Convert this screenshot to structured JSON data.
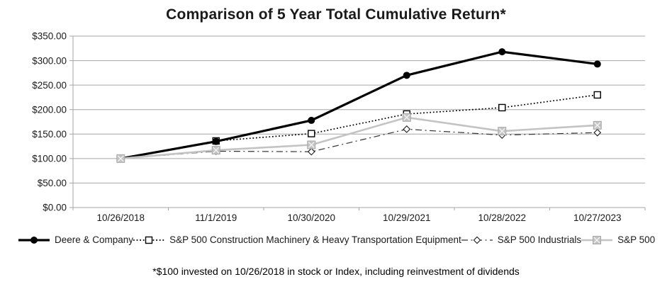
{
  "chart": {
    "title": "Comparison of 5 Year Total Cumulative Return*",
    "footnote": "*$100 invested on 10/26/2018 in stock or Index, including reinvestment of dividends"
  },
  "chart_data": {
    "type": "line",
    "title": "Comparison of 5 Year Total Cumulative Return*",
    "categories": [
      "10/26/2018",
      "11/1/2019",
      "10/30/2020",
      "10/29/2021",
      "10/28/2022",
      "10/27/2023"
    ],
    "series": [
      {
        "name": "Deere & Company",
        "values": [
          100,
          135,
          178,
          270,
          318,
          293
        ],
        "color": "#000000",
        "line_style": "solid",
        "line_width": 3.2,
        "marker": "filled-circle"
      },
      {
        "name": "S&P 500 Construction Machinery & Heavy Transportation Equipment",
        "values": [
          100,
          136,
          151,
          191,
          204,
          230
        ],
        "color": "#000000",
        "line_style": "dotted",
        "line_width": 1.7,
        "marker": "open-square"
      },
      {
        "name": "S&P 500 Industrials",
        "values": [
          100,
          115,
          114,
          160,
          148,
          153
        ],
        "color": "#333333",
        "line_style": "dash-dot",
        "line_width": 1.2,
        "marker": "open-diamond"
      },
      {
        "name": "S&P 500",
        "values": [
          100,
          117,
          128,
          184,
          156,
          168
        ],
        "color": "#c3c3c3",
        "line_style": "solid",
        "line_width": 2.6,
        "marker": "gray-x-square"
      }
    ],
    "xlabel": "",
    "ylabel": "",
    "ylim": [
      0,
      350
    ],
    "y_tick_step": 50,
    "y_tick_labels": [
      "$0.00",
      "$50.00",
      "$100.00",
      "$150.00",
      "$200.00",
      "$250.00",
      "$300.00",
      "$350.00"
    ],
    "grid": "horizontal",
    "grid_color": "#a6a6a6",
    "axis_color": "#a6a6a6",
    "legend_position": "bottom",
    "draw_order": [
      1,
      2,
      0,
      3
    ]
  }
}
